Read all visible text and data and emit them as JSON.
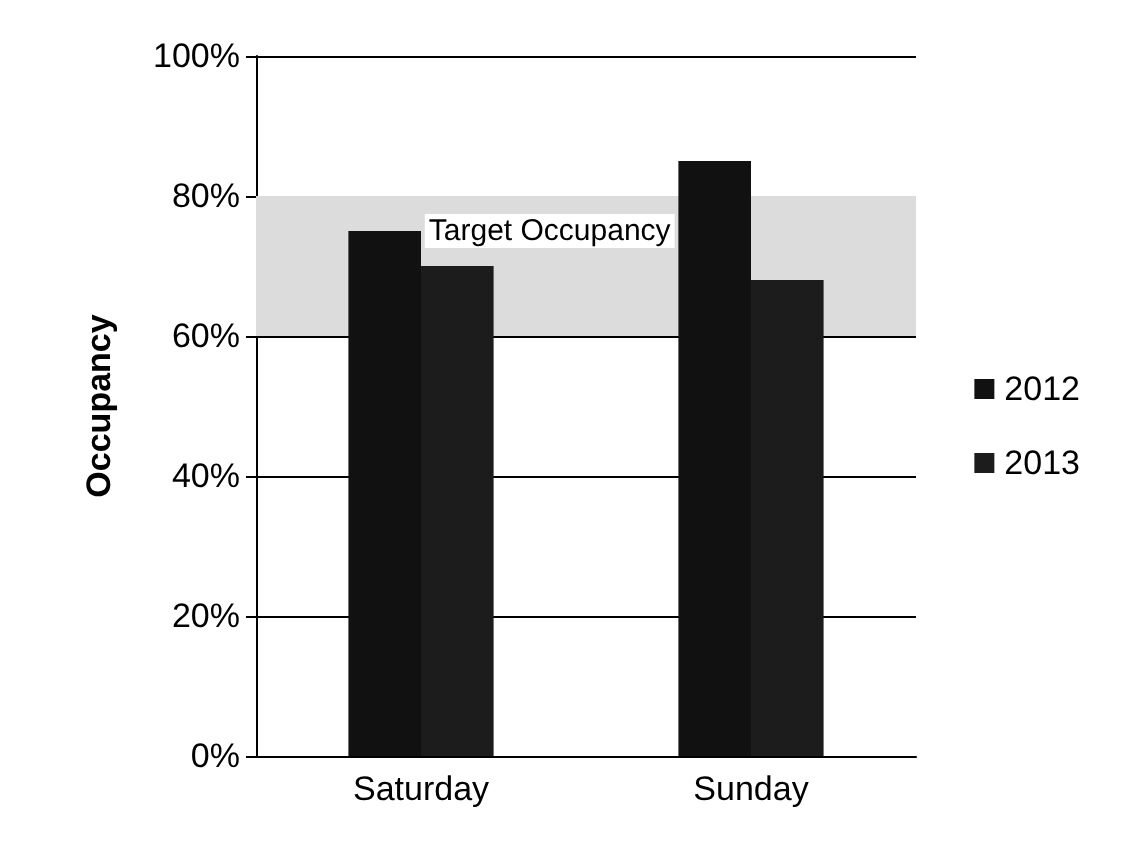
{
  "chart_data": {
    "type": "bar",
    "ylabel": "Occupancy",
    "categories": [
      "Saturday",
      "Sunday"
    ],
    "series": [
      {
        "name": "2012",
        "color": "#111111",
        "values": [
          75,
          85
        ]
      },
      {
        "name": "2013",
        "color": "#1c1c1c",
        "values": [
          70,
          68
        ]
      }
    ],
    "ylim": [
      0,
      100
    ],
    "yticks": [
      {
        "value": 0,
        "label": "0%"
      },
      {
        "value": 20,
        "label": "20%"
      },
      {
        "value": 40,
        "label": "40%"
      },
      {
        "value": 60,
        "label": "60%"
      },
      {
        "value": 80,
        "label": "80%"
      },
      {
        "value": 100,
        "label": "100%"
      }
    ],
    "grid": "y",
    "legend": "right",
    "bands": [
      {
        "axis": "y",
        "from": 60,
        "to": 80,
        "label": "Target Occupancy",
        "color": "#dcdcdc"
      }
    ]
  }
}
